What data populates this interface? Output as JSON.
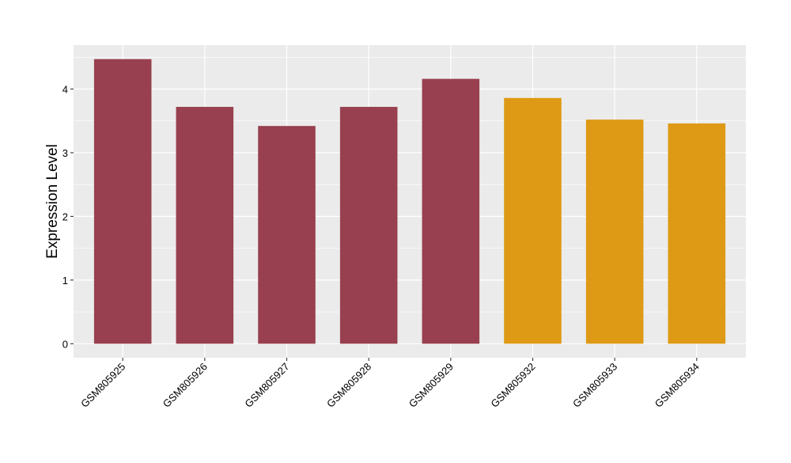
{
  "chart_data": {
    "type": "bar",
    "ylabel": "Expression Level",
    "categories": [
      "GSM805925",
      "GSM805926",
      "GSM805927",
      "GSM805928",
      "GSM805929",
      "GSM805932",
      "GSM805933",
      "GSM805934"
    ],
    "values": [
      4.47,
      3.72,
      3.42,
      3.72,
      4.16,
      3.86,
      3.52,
      3.46
    ],
    "bar_colors": [
      "#98404F",
      "#98404F",
      "#98404F",
      "#98404F",
      "#98404F",
      "#DE9A14",
      "#DE9A14",
      "#DE9A14"
    ],
    "ylim": [
      -0.22,
      4.69
    ],
    "yticks": [
      0,
      1,
      2,
      3,
      4
    ],
    "grid": true,
    "panel_background": "#EBEBEB",
    "gridline_color": "#FFFFFF"
  }
}
